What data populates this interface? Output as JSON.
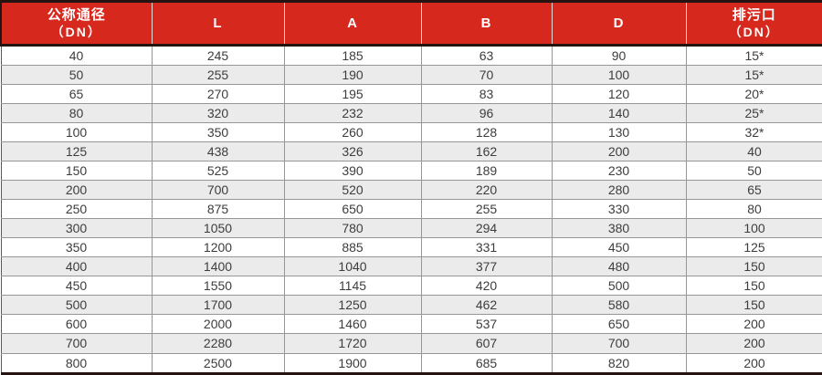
{
  "table": {
    "name": "valve-dimension-table",
    "columns": [
      {
        "id": "nominal-diameter",
        "line1": "公称通径",
        "line2": "（DN）"
      },
      {
        "id": "L",
        "line1": "L",
        "line2": ""
      },
      {
        "id": "A",
        "line1": "A",
        "line2": ""
      },
      {
        "id": "B",
        "line1": "B",
        "line2": ""
      },
      {
        "id": "D",
        "line1": "D",
        "line2": ""
      },
      {
        "id": "drain-port",
        "line1": "排污口",
        "line2": "（DN）"
      }
    ],
    "rows": [
      [
        "40",
        "245",
        "185",
        "63",
        "90",
        "15*"
      ],
      [
        "50",
        "255",
        "190",
        "70",
        "100",
        "15*"
      ],
      [
        "65",
        "270",
        "195",
        "83",
        "120",
        "20*"
      ],
      [
        "80",
        "320",
        "232",
        "96",
        "140",
        "25*"
      ],
      [
        "100",
        "350",
        "260",
        "128",
        "130",
        "32*"
      ],
      [
        "125",
        "438",
        "326",
        "162",
        "200",
        "40"
      ],
      [
        "150",
        "525",
        "390",
        "189",
        "230",
        "50"
      ],
      [
        "200",
        "700",
        "520",
        "220",
        "280",
        "65"
      ],
      [
        "250",
        "875",
        "650",
        "255",
        "330",
        "80"
      ],
      [
        "300",
        "1050",
        "780",
        "294",
        "380",
        "100"
      ],
      [
        "350",
        "1200",
        "885",
        "331",
        "450",
        "125"
      ],
      [
        "400",
        "1400",
        "1040",
        "377",
        "480",
        "150"
      ],
      [
        "450",
        "1550",
        "1145",
        "420",
        "500",
        "150"
      ],
      [
        "500",
        "1700",
        "1250",
        "462",
        "580",
        "150"
      ],
      [
        "600",
        "2000",
        "1460",
        "537",
        "650",
        "200"
      ],
      [
        "700",
        "2280",
        "1720",
        "607",
        "700",
        "200"
      ],
      [
        "800",
        "2500",
        "1900",
        "685",
        "820",
        "200"
      ]
    ]
  },
  "colors": {
    "header_bg": "#d7281e",
    "header_text": "#ffffff",
    "header_frame": "#241310",
    "row_alt_bg": "#ebebeb",
    "grid_line": "#969696",
    "cell_text": "#3d3d3d",
    "page_bg": "#ffffff"
  }
}
